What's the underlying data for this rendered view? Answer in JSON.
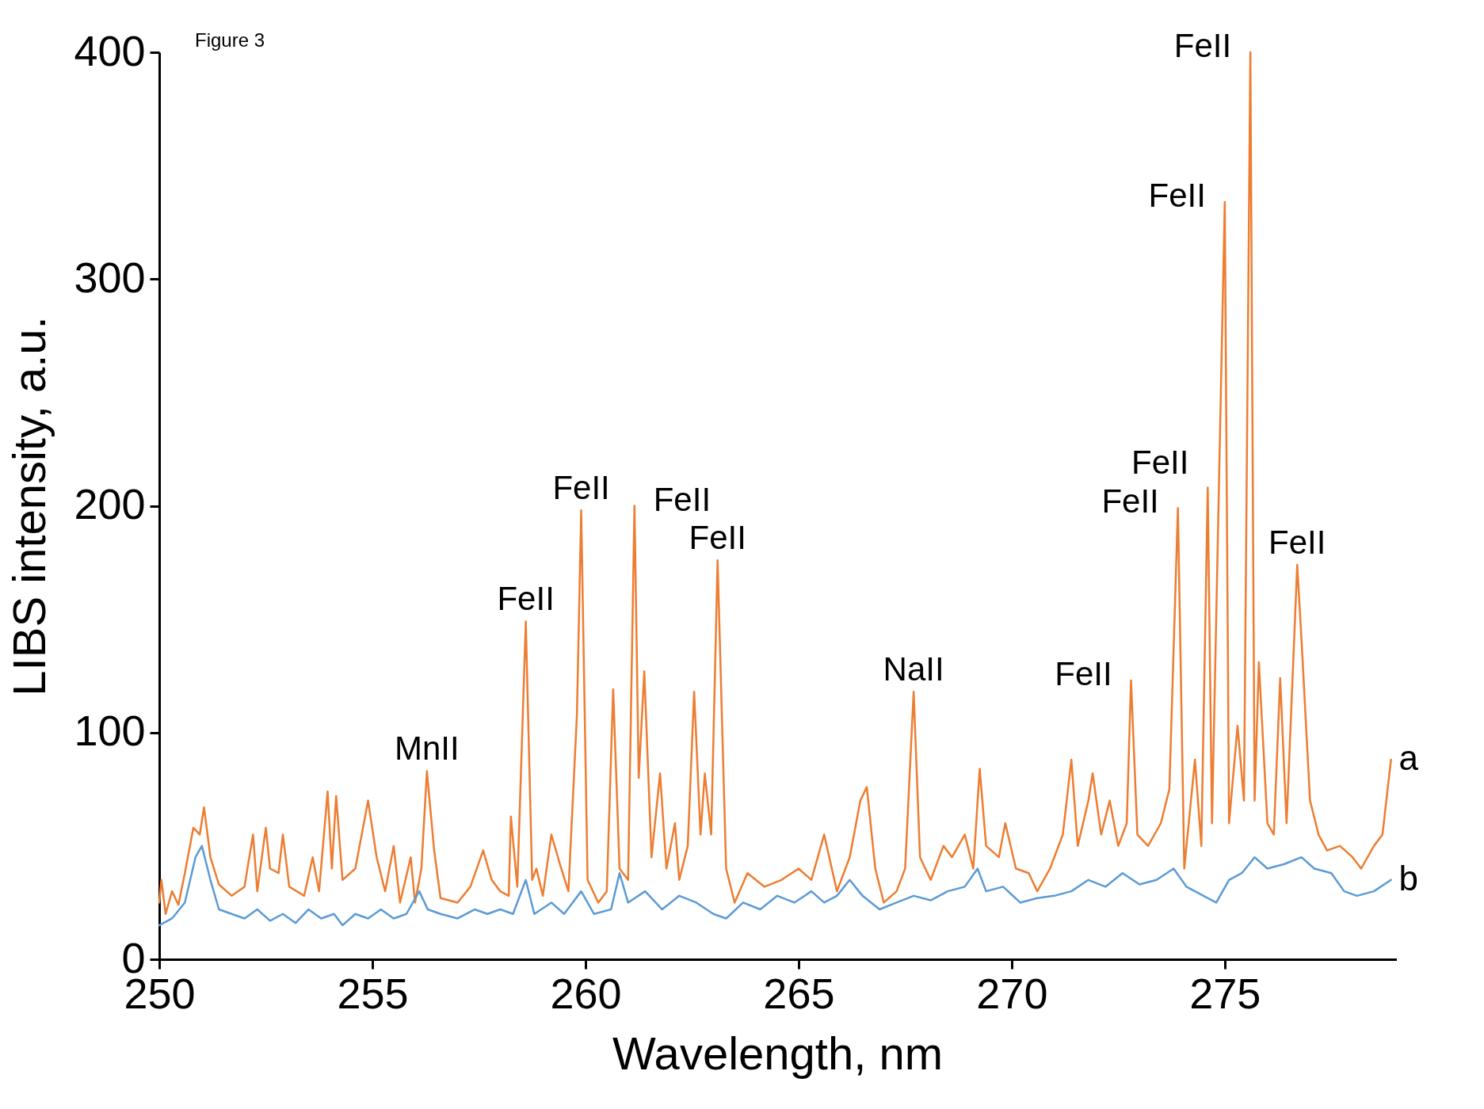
{
  "chart_data": {
    "type": "line",
    "xlabel": "Wavelength, nm",
    "ylabel": "LIBS intensity, a.u.",
    "xlim": [
      250,
      279
    ],
    "xticks": [
      250,
      255,
      260,
      265,
      270,
      275
    ],
    "ylim": [
      0,
      400
    ],
    "yticks": [
      0,
      100,
      200,
      300,
      400
    ],
    "series": [
      {
        "name": "a",
        "color": "#ed7d31",
        "x": [
          250.0,
          250.05,
          250.15,
          250.3,
          250.45,
          250.6,
          250.8,
          250.95,
          251.05,
          251.2,
          251.4,
          251.7,
          252.0,
          252.2,
          252.3,
          252.5,
          252.6,
          252.8,
          252.9,
          253.05,
          253.4,
          253.6,
          253.75,
          253.95,
          254.05,
          254.15,
          254.3,
          254.6,
          254.9,
          255.1,
          255.3,
          255.5,
          255.65,
          255.9,
          256.0,
          256.15,
          256.28,
          256.45,
          256.6,
          257.0,
          257.3,
          257.6,
          257.8,
          258.0,
          258.2,
          258.25,
          258.4,
          258.6,
          258.75,
          258.85,
          259.0,
          259.2,
          259.4,
          259.6,
          259.8,
          259.9,
          260.05,
          260.3,
          260.5,
          260.65,
          260.8,
          261.0,
          261.15,
          261.25,
          261.38,
          261.55,
          261.75,
          261.9,
          262.1,
          262.2,
          262.4,
          262.55,
          262.7,
          262.8,
          262.95,
          263.1,
          263.3,
          263.5,
          263.8,
          264.2,
          264.6,
          265.0,
          265.3,
          265.6,
          265.9,
          266.2,
          266.45,
          266.6,
          266.8,
          267.0,
          267.3,
          267.5,
          267.7,
          267.85,
          268.1,
          268.4,
          268.6,
          268.9,
          269.1,
          269.25,
          269.4,
          269.7,
          269.85,
          270.1,
          270.4,
          270.6,
          270.9,
          271.2,
          271.4,
          271.55,
          271.8,
          271.9,
          272.1,
          272.3,
          272.5,
          272.7,
          272.8,
          272.95,
          273.2,
          273.5,
          273.7,
          273.9,
          274.05,
          274.3,
          274.45,
          274.6,
          274.7,
          275.0,
          275.1,
          275.3,
          275.45,
          275.6,
          275.7,
          275.8,
          276.0,
          276.15,
          276.3,
          276.45,
          276.7,
          276.8,
          277.0,
          277.2,
          277.4,
          277.7,
          278.0,
          278.2,
          278.5,
          278.7,
          278.9
        ],
        "values": [
          25,
          35,
          20,
          30,
          24,
          38,
          58,
          55,
          67,
          45,
          33,
          28,
          32,
          55,
          30,
          58,
          40,
          38,
          55,
          32,
          28,
          45,
          30,
          74,
          40,
          72,
          35,
          40,
          70,
          45,
          30,
          50,
          25,
          45,
          25,
          40,
          83,
          48,
          27,
          25,
          32,
          48,
          35,
          30,
          28,
          63,
          32,
          149,
          35,
          40,
          28,
          55,
          42,
          30,
          108,
          198,
          35,
          25,
          30,
          119,
          40,
          35,
          200,
          80,
          127,
          45,
          82,
          40,
          60,
          35,
          50,
          118,
          55,
          82,
          55,
          176,
          40,
          25,
          38,
          32,
          35,
          40,
          35,
          55,
          30,
          45,
          70,
          76,
          40,
          25,
          30,
          40,
          118,
          45,
          35,
          50,
          45,
          55,
          40,
          84,
          50,
          45,
          60,
          40,
          38,
          30,
          40,
          55,
          88,
          50,
          70,
          82,
          55,
          70,
          50,
          60,
          123,
          55,
          50,
          60,
          75,
          199,
          40,
          88,
          50,
          208,
          60,
          334,
          60,
          103,
          70,
          400,
          70,
          131,
          60,
          55,
          124,
          60,
          174,
          141,
          70,
          55,
          48,
          50,
          45,
          40,
          50,
          55,
          88
        ]
      },
      {
        "name": "b",
        "color": "#5b9bd5",
        "x": [
          250,
          250.3,
          250.6,
          250.85,
          251.0,
          251.2,
          251.4,
          251.7,
          252.0,
          252.3,
          252.6,
          252.9,
          253.2,
          253.5,
          253.8,
          254.1,
          254.3,
          254.6,
          254.9,
          255.2,
          255.5,
          255.8,
          256.1,
          256.3,
          256.6,
          257.0,
          257.4,
          257.7,
          258.0,
          258.3,
          258.6,
          258.8,
          259.2,
          259.5,
          259.9,
          260.2,
          260.6,
          260.8,
          261.0,
          261.4,
          261.8,
          262.2,
          262.6,
          263.0,
          263.3,
          263.7,
          264.1,
          264.5,
          264.9,
          265.3,
          265.6,
          265.9,
          266.2,
          266.5,
          266.9,
          267.3,
          267.7,
          268.1,
          268.5,
          268.9,
          269.2,
          269.4,
          269.8,
          270.2,
          270.6,
          271.0,
          271.4,
          271.8,
          272.2,
          272.6,
          273.0,
          273.4,
          273.8,
          274.1,
          274.5,
          274.8,
          275.1,
          275.4,
          275.7,
          276.0,
          276.4,
          276.8,
          277.1,
          277.5,
          277.8,
          278.1,
          278.5,
          278.9
        ],
        "values": [
          15,
          18,
          25,
          45,
          50,
          35,
          22,
          20,
          18,
          22,
          17,
          20,
          16,
          22,
          18,
          20,
          15,
          20,
          18,
          22,
          18,
          20,
          30,
          22,
          20,
          18,
          22,
          20,
          22,
          20,
          35,
          20,
          25,
          20,
          30,
          20,
          22,
          38,
          25,
          30,
          22,
          28,
          25,
          20,
          18,
          25,
          22,
          28,
          25,
          30,
          25,
          28,
          35,
          28,
          22,
          25,
          28,
          26,
          30,
          32,
          40,
          30,
          32,
          25,
          27,
          28,
          30,
          35,
          32,
          38,
          33,
          35,
          40,
          32,
          28,
          25,
          35,
          38,
          45,
          40,
          42,
          45,
          40,
          38,
          30,
          28,
          30,
          35
        ]
      }
    ],
    "annotations": [
      "Figure 3",
      {
        "text": "MnII",
        "x": 256.28,
        "y": 83
      },
      {
        "text": "FeII",
        "x": 258.6,
        "y": 149
      },
      {
        "text": "FeII",
        "x": 259.9,
        "y": 198
      },
      {
        "text": "FeII",
        "x": 261.15,
        "y": 200
      },
      {
        "text": "FeII",
        "x": 263.1,
        "y": 176
      },
      {
        "text": "NaII",
        "x": 267.7,
        "y": 118
      },
      {
        "text": "FeII",
        "x": 272.8,
        "y": 123
      },
      {
        "text": "FeII",
        "x": 273.9,
        "y": 199
      },
      {
        "text": "FeII",
        "x": 274.6,
        "y": 208
      },
      {
        "text": "FeII",
        "x": 275.0,
        "y": 334
      },
      {
        "text": "FeII",
        "x": 275.6,
        "y": 400
      },
      {
        "text": "FeII",
        "x": 276.7,
        "y": 174
      }
    ]
  }
}
